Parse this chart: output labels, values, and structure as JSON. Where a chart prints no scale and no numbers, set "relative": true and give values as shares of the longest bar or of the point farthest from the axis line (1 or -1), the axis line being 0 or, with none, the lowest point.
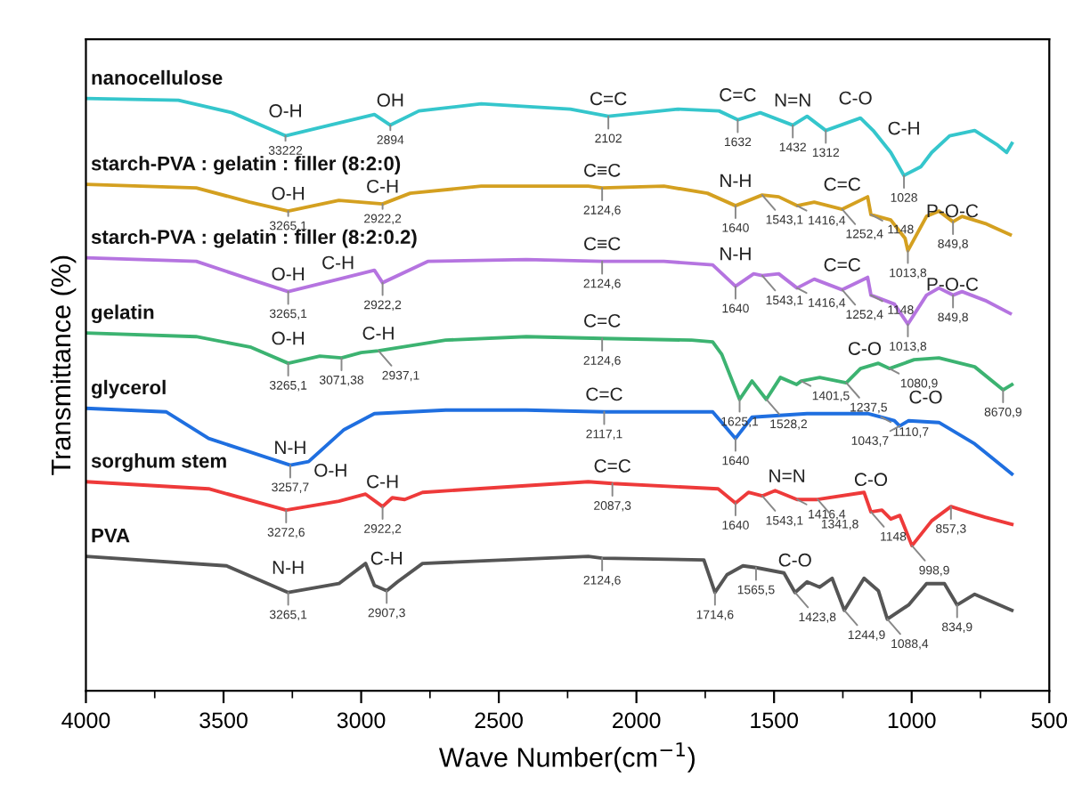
{
  "chart_data": {
    "type": "line",
    "relative": true,
    "xlabel": "Wave Number(cm$^{−1}$)",
    "ylabel": "Transmittance (%)",
    "xlim": [
      4000,
      500
    ],
    "xticks": [
      4000,
      3500,
      3000,
      2500,
      2000,
      1500,
      1000,
      500
    ],
    "grid": false,
    "marker": "none",
    "line_style": "solid",
    "series": [
      {
        "name": "nanocellulose",
        "color": "#35c6cc",
        "x": [
          4000,
          3664,
          3469,
          3275,
          3114,
          2952,
          2894,
          2790,
          2564,
          2240,
          2102,
          1850,
          1700,
          1632,
          1550,
          1432,
          1380,
          1312,
          1186,
          1140,
          1076,
          1028,
          966,
          927,
          862,
          771,
          687,
          655,
          636
        ],
        "values": [
          1.0,
          0.997,
          0.976,
          0.937,
          0.955,
          0.973,
          0.955,
          0.979,
          0.991,
          0.982,
          0.97,
          0.982,
          0.979,
          0.964,
          0.976,
          0.955,
          0.97,
          0.946,
          0.967,
          0.946,
          0.909,
          0.87,
          0.885,
          0.909,
          0.937,
          0.946,
          0.921,
          0.909,
          0.924
        ]
      },
      {
        "name": "starch-PVA : gelatin : filler (8:2:0)",
        "color": "#d4a020",
        "x": [
          4000,
          3599,
          3405,
          3265.1,
          3081,
          2922.2,
          2822,
          2564,
          2175,
          2124.6,
          1900,
          1742,
          1640,
          1543.1,
          1483,
          1416.4,
          1354,
          1252.4,
          1160,
          1148,
          1076,
          1024,
          1013.8,
          946,
          901,
          849.8,
          817,
          733,
          642
        ],
        "values": [
          0.855,
          0.849,
          0.825,
          0.81,
          0.828,
          0.822,
          0.84,
          0.852,
          0.852,
          0.849,
          0.852,
          0.84,
          0.819,
          0.837,
          0.834,
          0.819,
          0.825,
          0.813,
          0.834,
          0.804,
          0.795,
          0.764,
          0.743,
          0.801,
          0.81,
          0.792,
          0.801,
          0.789,
          0.77
        ]
      },
      {
        "name": "starch-PVA : gelatin : filler (8:2:0.2)",
        "color": "#b574e0",
        "x": [
          4000,
          3599,
          3405,
          3265.1,
          3081,
          2952,
          2922.2,
          2758,
          2400,
          2124.6,
          1900,
          1723,
          1640,
          1574,
          1543.1,
          1483,
          1416.4,
          1354,
          1252.4,
          1160,
          1148,
          1063,
          1013.8,
          946,
          901,
          849.8,
          817,
          733,
          642
        ],
        "values": [
          0.731,
          0.725,
          0.695,
          0.674,
          0.695,
          0.71,
          0.689,
          0.725,
          0.728,
          0.725,
          0.725,
          0.719,
          0.683,
          0.704,
          0.701,
          0.704,
          0.68,
          0.695,
          0.677,
          0.698,
          0.668,
          0.653,
          0.619,
          0.668,
          0.68,
          0.668,
          0.674,
          0.659,
          0.637
        ]
      },
      {
        "name": "gelatin",
        "color": "#3cb371",
        "x": [
          4000,
          3600,
          3400,
          3265.1,
          3150,
          3071.38,
          3000,
          2937.1,
          2693,
          2400,
          2124.6,
          1800,
          1723,
          1690,
          1625.1,
          1580,
          1528.2,
          1477,
          1418,
          1401.5,
          1334,
          1237.5,
          1186,
          1121,
          1080.9,
          991,
          901,
          771,
          668,
          636
        ],
        "values": [
          0.604,
          0.598,
          0.58,
          0.553,
          0.565,
          0.562,
          0.571,
          0.574,
          0.592,
          0.598,
          0.595,
          0.592,
          0.589,
          0.568,
          0.492,
          0.523,
          0.492,
          0.529,
          0.517,
          0.523,
          0.529,
          0.52,
          0.544,
          0.553,
          0.544,
          0.559,
          0.562,
          0.547,
          0.508,
          0.517
        ]
      },
      {
        "name": "glycerol",
        "color": "#1f6fe0",
        "x": [
          4000,
          3709,
          3554,
          3257.7,
          3191,
          3062,
          2952,
          2693,
          2400,
          2117.1,
          1723,
          1640,
          1580,
          1380,
          1160,
          1110.7,
          1063,
          1043.7,
          1011,
          901,
          771,
          636
        ],
        "values": [
          0.477,
          0.471,
          0.426,
          0.381,
          0.387,
          0.441,
          0.468,
          0.474,
          0.474,
          0.471,
          0.471,
          0.426,
          0.462,
          0.468,
          0.468,
          0.462,
          0.456,
          0.447,
          0.456,
          0.453,
          0.417,
          0.366
        ]
      },
      {
        "name": "sorghum stem",
        "color": "#ee3a3a",
        "x": [
          4000,
          3554,
          3272.6,
          3081,
          2984,
          2922.2,
          2887,
          2842,
          2777,
          2480,
          2175,
          2087.3,
          1703,
          1640,
          1593,
          1543.1,
          1496,
          1416.4,
          1341.8,
          1173,
          1148,
          1108,
          1076,
          1043,
          998.9,
          927,
          857.3,
          797,
          733,
          636
        ],
        "values": [
          0.353,
          0.341,
          0.305,
          0.32,
          0.332,
          0.311,
          0.326,
          0.323,
          0.335,
          0.344,
          0.353,
          0.35,
          0.341,
          0.317,
          0.335,
          0.329,
          0.338,
          0.323,
          0.323,
          0.335,
          0.302,
          0.305,
          0.29,
          0.296,
          0.245,
          0.287,
          0.311,
          0.302,
          0.293,
          0.281
        ]
      },
      {
        "name": "PVA",
        "color": "#555555",
        "x": [
          4000,
          3489,
          3265.1,
          3081,
          2984,
          2952,
          2907.3,
          2868,
          2777,
          2175,
          2124.6,
          1755,
          1714.6,
          1671,
          1613,
          1565.5,
          1464,
          1423.8,
          1380,
          1334,
          1289,
          1244.9,
          1173,
          1121,
          1088.4,
          1011,
          946,
          881,
          834.9,
          771,
          636
        ],
        "values": [
          0.227,
          0.211,
          0.166,
          0.181,
          0.215,
          0.178,
          0.169,
          0.184,
          0.215,
          0.227,
          0.224,
          0.221,
          0.166,
          0.196,
          0.211,
          0.208,
          0.199,
          0.166,
          0.184,
          0.175,
          0.19,
          0.136,
          0.19,
          0.169,
          0.121,
          0.145,
          0.181,
          0.181,
          0.145,
          0.163,
          0.136
        ]
      }
    ],
    "annotations": [
      {
        "text": "O-H",
        "x": 3275,
        "y": 0.937
      },
      {
        "text": "OH",
        "x": 2894,
        "y": 0.955
      },
      {
        "text": "C=C",
        "x": 2102,
        "y": 0.97
      },
      {
        "text": "C=C",
        "x": 1632,
        "y": 0.964
      },
      {
        "text": "N=N",
        "x": 1432,
        "y": 0.955
      },
      {
        "text": "C-O",
        "x": 1312,
        "y": 0.946
      },
      {
        "text": "C-H",
        "x": 1028,
        "y": 0.87
      },
      {
        "text": "33222",
        "x": 3275,
        "y": 0.937
      },
      {
        "text": "2894",
        "x": 2894,
        "y": 0.955
      },
      {
        "text": "2102",
        "x": 2102,
        "y": 0.97
      },
      {
        "text": "1632",
        "x": 1632,
        "y": 0.964
      },
      {
        "text": "1432",
        "x": 1432,
        "y": 0.955
      },
      {
        "text": "1312",
        "x": 1312,
        "y": 0.946
      },
      {
        "text": "1028",
        "x": 1028,
        "y": 0.87
      },
      {
        "text": "O-H",
        "x": 3265.1,
        "y": 0.81
      },
      {
        "text": "C-H",
        "x": 2922.2,
        "y": 0.822
      },
      {
        "text": "C≡C",
        "x": 2124.6,
        "y": 0.849
      },
      {
        "text": "N-H",
        "x": 1640,
        "y": 0.819
      },
      {
        "text": "C=C",
        "x": 1252.4,
        "y": 0.813
      },
      {
        "text": "P-O-C",
        "x": 1013.8,
        "y": 0.743
      },
      {
        "text": "3265,1",
        "x": 3265.1,
        "y": 0.81
      },
      {
        "text": "2922,2",
        "x": 2922.2,
        "y": 0.822
      },
      {
        "text": "2124,6",
        "x": 2124.6,
        "y": 0.849
      },
      {
        "text": "1640",
        "x": 1640,
        "y": 0.819
      },
      {
        "text": "1543,1",
        "x": 1543.1,
        "y": 0.837
      },
      {
        "text": "1416,4",
        "x": 1416.4,
        "y": 0.819
      },
      {
        "text": "1252,4",
        "x": 1252.4,
        "y": 0.813
      },
      {
        "text": "1148",
        "x": 1148,
        "y": 0.804
      },
      {
        "text": "1013,8",
        "x": 1013.8,
        "y": 0.743
      },
      {
        "text": "849,8",
        "x": 849.8,
        "y": 0.792
      },
      {
        "text": "O-H",
        "x": 3265.1,
        "y": 0.674
      },
      {
        "text": "C-H",
        "x": 2922.2,
        "y": 0.689
      },
      {
        "text": "C≡C",
        "x": 2124.6,
        "y": 0.725
      },
      {
        "text": "N-H",
        "x": 1640,
        "y": 0.683
      },
      {
        "text": "C=C",
        "x": 1252.4,
        "y": 0.677
      },
      {
        "text": "P-O-C",
        "x": 1013.8,
        "y": 0.619
      },
      {
        "text": "3265,1",
        "x": 3265.1,
        "y": 0.674
      },
      {
        "text": "2922,2",
        "x": 2922.2,
        "y": 0.689
      },
      {
        "text": "2124,6",
        "x": 2124.6,
        "y": 0.725
      },
      {
        "text": "1640",
        "x": 1640,
        "y": 0.683
      },
      {
        "text": "1543,1",
        "x": 1543.1,
        "y": 0.701
      },
      {
        "text": "1416,4",
        "x": 1416.4,
        "y": 0.68
      },
      {
        "text": "1252,4",
        "x": 1252.4,
        "y": 0.677
      },
      {
        "text": "1148",
        "x": 1148,
        "y": 0.668
      },
      {
        "text": "1013,8",
        "x": 1013.8,
        "y": 0.619
      },
      {
        "text": "849,8",
        "x": 849.8,
        "y": 0.668
      },
      {
        "text": "O-H",
        "x": 3265.1,
        "y": 0.553
      },
      {
        "text": "C-H",
        "x": 2937.1,
        "y": 0.574
      },
      {
        "text": "C=C",
        "x": 2124.6,
        "y": 0.595
      },
      {
        "text": "C-O",
        "x": 1080.9,
        "y": 0.544
      },
      {
        "text": "3265,1",
        "x": 3265.1,
        "y": 0.553
      },
      {
        "text": "3071,38",
        "x": 3071.38,
        "y": 0.562
      },
      {
        "text": "2937,1",
        "x": 2937.1,
        "y": 0.574
      },
      {
        "text": "2124,6",
        "x": 2124.6,
        "y": 0.595
      },
      {
        "text": "1625,1",
        "x": 1625.1,
        "y": 0.492
      },
      {
        "text": "1528,2",
        "x": 1528.2,
        "y": 0.492
      },
      {
        "text": "1401,5",
        "x": 1401.5,
        "y": 0.523
      },
      {
        "text": "1237,5",
        "x": 1237.5,
        "y": 0.52
      },
      {
        "text": "1080,9",
        "x": 1080.9,
        "y": 0.544
      },
      {
        "text": "8670,9",
        "x": 668,
        "y": 0.508
      },
      {
        "text": "N-H",
        "x": 3257.7,
        "y": 0.381
      },
      {
        "text": "C=C",
        "x": 2117.1,
        "y": 0.471
      },
      {
        "text": "C-O",
        "x": 1110.7,
        "y": 0.462
      },
      {
        "text": "3257,7",
        "x": 3257.7,
        "y": 0.381
      },
      {
        "text": "2117,1",
        "x": 2117.1,
        "y": 0.471
      },
      {
        "text": "1640",
        "x": 1640,
        "y": 0.426
      },
      {
        "text": "1110,7",
        "x": 1110.7,
        "y": 0.462
      },
      {
        "text": "1043,7",
        "x": 1043.7,
        "y": 0.447
      },
      {
        "text": "O-H",
        "x": 3272.6,
        "y": 0.305
      },
      {
        "text": "C-H",
        "x": 2922.2,
        "y": 0.311
      },
      {
        "text": "C=C",
        "x": 2087.3,
        "y": 0.35
      },
      {
        "text": "N=N",
        "x": 1543.1,
        "y": 0.329
      },
      {
        "text": "C-O",
        "x": 1148,
        "y": 0.302
      },
      {
        "text": "3272,6",
        "x": 3272.6,
        "y": 0.305
      },
      {
        "text": "2922,2",
        "x": 2922.2,
        "y": 0.311
      },
      {
        "text": "2087,3",
        "x": 2087.3,
        "y": 0.35
      },
      {
        "text": "1640",
        "x": 1640,
        "y": 0.317
      },
      {
        "text": "1543,1",
        "x": 1543.1,
        "y": 0.329
      },
      {
        "text": "1416,4",
        "x": 1416.4,
        "y": 0.323
      },
      {
        "text": "1341,8",
        "x": 1341.8,
        "y": 0.323
      },
      {
        "text": "1148",
        "x": 1148,
        "y": 0.302
      },
      {
        "text": "998,9",
        "x": 998.9,
        "y": 0.245
      },
      {
        "text": "857,3",
        "x": 857.3,
        "y": 0.311
      },
      {
        "text": "N-H",
        "x": 3265.1,
        "y": 0.166
      },
      {
        "text": "C-H",
        "x": 2907.3,
        "y": 0.169
      },
      {
        "text": "C-O",
        "x": 1423.8,
        "y": 0.166
      },
      {
        "text": "3265,1",
        "x": 3265.1,
        "y": 0.166
      },
      {
        "text": "2907,3",
        "x": 2907.3,
        "y": 0.169
      },
      {
        "text": "2124,6",
        "x": 2124.6,
        "y": 0.224
      },
      {
        "text": "1714,6",
        "x": 1714.6,
        "y": 0.166
      },
      {
        "text": "1565,5",
        "x": 1565.5,
        "y": 0.208
      },
      {
        "text": "1423,8",
        "x": 1423.8,
        "y": 0.166
      },
      {
        "text": "1244,9",
        "x": 1244.9,
        "y": 0.136
      },
      {
        "text": "1088,4",
        "x": 1088.4,
        "y": 0.121
      },
      {
        "text": "834,9",
        "x": 834.9,
        "y": 0.145
      }
    ]
  }
}
